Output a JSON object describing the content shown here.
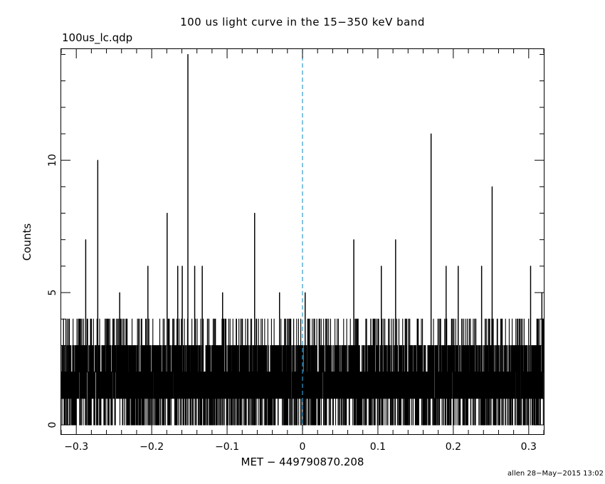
{
  "header": {
    "title": "100 us light curve in the 15−350 keV band",
    "filename": "100us_lc.qdp"
  },
  "footer": {
    "stamp": "allen 28−May−2015 13:02"
  },
  "chart_data": {
    "type": "line",
    "title": "100 us light curve in the 15−350 keV band",
    "xlabel": "MET − 449790870.208",
    "ylabel": "Counts",
    "xlim": [
      -0.32,
      0.32
    ],
    "ylim": [
      -0.35,
      14.2
    ],
    "x_ticks": [
      -0.3,
      -0.2,
      -0.1,
      0,
      0.1,
      0.2,
      0.3
    ],
    "x_tick_labels": [
      "−0.3",
      "−0.2",
      "−0.1",
      "0",
      "0.1",
      "0.2",
      "0.3"
    ],
    "y_ticks": [
      0,
      5,
      10
    ],
    "y_tick_labels": [
      "0",
      "5",
      "10"
    ],
    "bin_width": 0.0001,
    "trigger_line": {
      "x": 0,
      "style": "dashed",
      "color": "#3399cc"
    },
    "series": [
      {
        "baseline_range": [
          0,
          3
        ],
        "line_color": "#000000",
        "peaks": [
          {
            "x": -0.2875,
            "y": 7
          },
          {
            "x": -0.2715,
            "y": 10
          },
          {
            "x": -0.2425,
            "y": 5
          },
          {
            "x": -0.205,
            "y": 6
          },
          {
            "x": -0.1795,
            "y": 8
          },
          {
            "x": -0.1655,
            "y": 6
          },
          {
            "x": -0.1595,
            "y": 6
          },
          {
            "x": -0.152,
            "y": 14
          },
          {
            "x": -0.143,
            "y": 6
          },
          {
            "x": -0.133,
            "y": 6
          },
          {
            "x": -0.106,
            "y": 5
          },
          {
            "x": -0.0635,
            "y": 8
          },
          {
            "x": -0.0305,
            "y": 5
          },
          {
            "x": 0.0035,
            "y": 5
          },
          {
            "x": 0.068,
            "y": 7
          },
          {
            "x": 0.1045,
            "y": 6
          },
          {
            "x": 0.1235,
            "y": 7
          },
          {
            "x": 0.1705,
            "y": 11
          },
          {
            "x": 0.1905,
            "y": 6
          },
          {
            "x": 0.2065,
            "y": 6
          },
          {
            "x": 0.2375,
            "y": 6
          },
          {
            "x": 0.2515,
            "y": 9
          },
          {
            "x": 0.3025,
            "y": 6
          },
          {
            "x": 0.3175,
            "y": 5
          }
        ]
      }
    ]
  }
}
